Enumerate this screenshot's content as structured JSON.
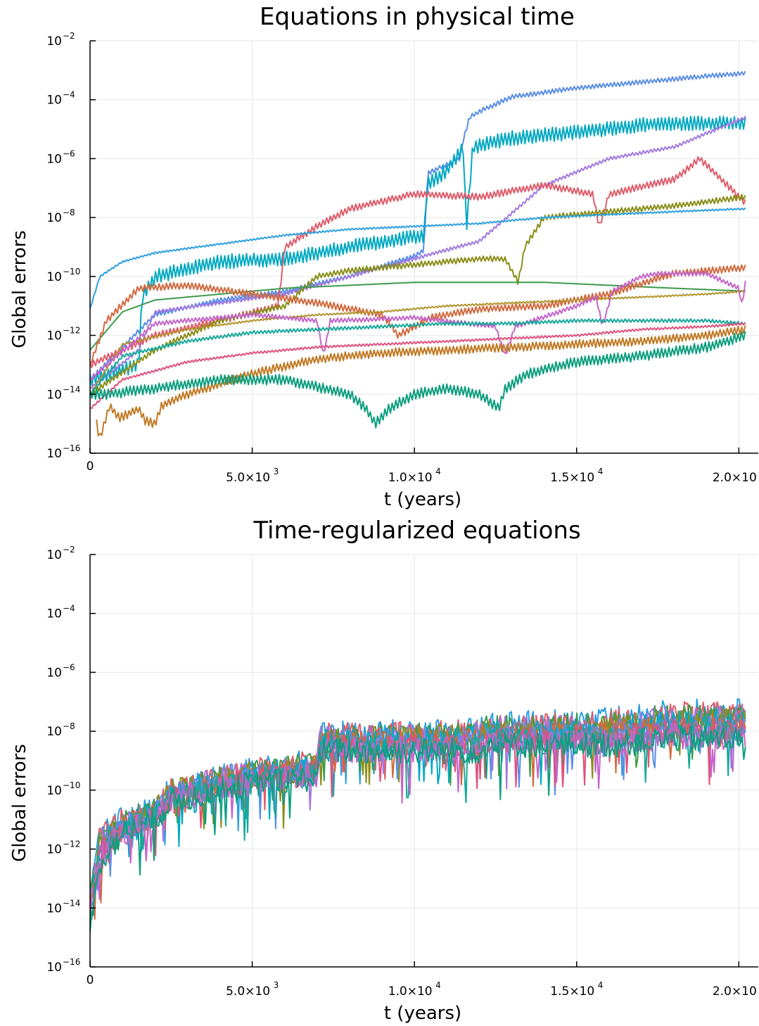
{
  "chart_data": [
    {
      "type": "line",
      "title": "Equations in physical time",
      "xlabel": "t (years)",
      "ylabel": "Global errors",
      "yscale": "log10",
      "xlim": [
        0,
        20600
      ],
      "ylim": [
        1e-16,
        0.01
      ],
      "x_ticks": [
        {
          "value": 0,
          "label": "0"
        },
        {
          "value": 5000,
          "mant": "5.0",
          "exp": "3"
        },
        {
          "value": 10000,
          "mant": "1.0",
          "exp": "4"
        },
        {
          "value": 15000,
          "mant": "1.5",
          "exp": "4"
        },
        {
          "value": 20000,
          "mant": "2.0",
          "exp": "4"
        }
      ],
      "y_ticks": [
        {
          "value": -2,
          "exp": "−2"
        },
        {
          "value": -4,
          "exp": "−4"
        },
        {
          "value": -6,
          "exp": "−6"
        },
        {
          "value": -8,
          "exp": "−8"
        },
        {
          "value": -10,
          "exp": "−10"
        },
        {
          "value": -12,
          "exp": "−12"
        },
        {
          "value": -14,
          "exp": "−14"
        },
        {
          "value": -16,
          "exp": "−16"
        }
      ],
      "grid": true,
      "legend": "none",
      "series": [
        {
          "color": "#5b8ee6",
          "x": [
            0,
            2000,
            4000,
            6000,
            8000,
            10000,
            10300,
            10400,
            11400,
            11500,
            11700,
            12000,
            13000,
            15000,
            17000,
            19000,
            20200
          ],
          "log10y": [
            -13.5,
            -11.3,
            -10.8,
            -10.5,
            -10.0,
            -9.3,
            -9.1,
            -6.5,
            -6.0,
            -5.4,
            -4.6,
            -4.4,
            -3.9,
            -3.6,
            -3.4,
            -3.2,
            -3.1
          ],
          "jitter": 0.08
        },
        {
          "color": "#00a9c2",
          "x": [
            0,
            1500,
            1600,
            2000,
            4000,
            6000,
            8000,
            10300,
            10400,
            11000,
            11500,
            11600,
            11800,
            13000,
            15000,
            17500,
            20200
          ],
          "log10y": [
            -13.5,
            -13.0,
            -10.7,
            -10.0,
            -9.5,
            -9.4,
            -9.0,
            -8.6,
            -6.9,
            -6.4,
            -5.6,
            -8.4,
            -5.6,
            -5.3,
            -5.1,
            -4.8,
            -4.8
          ],
          "jitter": 0.25
        },
        {
          "color": "#a279e0",
          "x": [
            0,
            1500,
            2000,
            4000,
            6000,
            8000,
            10000,
            12000,
            14000,
            16000,
            18000,
            20200
          ],
          "log10y": [
            -13.8,
            -12.5,
            -11.2,
            -10.9,
            -10.6,
            -10.0,
            -9.4,
            -8.8,
            -6.9,
            -6.0,
            -5.6,
            -4.6
          ],
          "jitter": 0.06
        },
        {
          "color": "#e05c6a",
          "x": [
            0,
            2000,
            4000,
            5800,
            6000,
            7000,
            8000,
            10000,
            12000,
            14000,
            15500,
            15700,
            16000,
            18000,
            18800,
            20200
          ],
          "log10y": [
            -13.0,
            -12.0,
            -11.5,
            -11.0,
            -9.0,
            -8.3,
            -7.7,
            -7.2,
            -7.3,
            -6.9,
            -7.2,
            -8.3,
            -7.2,
            -6.7,
            -6.0,
            -7.5
          ],
          "jitter": 0.12
        },
        {
          "color": "#8a8f1a",
          "x": [
            0,
            2000,
            4000,
            6000,
            7000,
            8000,
            10000,
            12000,
            12800,
            13200,
            13400,
            14000,
            16000,
            18000,
            20200
          ],
          "log10y": [
            -14.0,
            -12.5,
            -11.5,
            -11.0,
            -10.0,
            -9.8,
            -9.6,
            -9.4,
            -9.4,
            -10.2,
            -9.0,
            -8.0,
            -7.8,
            -7.6,
            -7.3
          ],
          "jitter": 0.1
        },
        {
          "color": "#2c9fe0",
          "x": [
            0,
            300,
            1000,
            2000,
            4000,
            6000,
            8000,
            10000,
            12000,
            14000,
            16000,
            18000,
            20200
          ],
          "log10y": [
            -11.1,
            -10.0,
            -9.5,
            -9.2,
            -8.9,
            -8.6,
            -8.4,
            -8.3,
            -8.2,
            -8.0,
            -7.9,
            -7.8,
            -7.7
          ],
          "jitter": 0.03
        },
        {
          "color": "#3d9a4a",
          "x": [
            0,
            1000,
            2000,
            4000,
            6000,
            8000,
            10000,
            12000,
            14000,
            16000,
            18000,
            20200
          ],
          "log10y": [
            -12.5,
            -11.2,
            -10.8,
            -10.6,
            -10.4,
            -10.3,
            -10.2,
            -10.2,
            -10.2,
            -10.3,
            -10.4,
            -10.5
          ],
          "jitter": 0.0
        },
        {
          "color": "#d26a3f",
          "x": [
            0,
            500,
            1500,
            3000,
            5000,
            7000,
            9000,
            9500,
            10500,
            12000,
            14000,
            16000,
            18000,
            20200
          ],
          "log10y": [
            -13.0,
            -11.5,
            -10.4,
            -10.3,
            -10.6,
            -10.9,
            -11.3,
            -12.0,
            -11.4,
            -11.1,
            -11.0,
            -10.6,
            -9.9,
            -9.7
          ],
          "jitter": 0.12
        },
        {
          "color": "#b0952d",
          "x": [
            0,
            1000,
            3000,
            5000,
            7000,
            9000,
            11000,
            13000,
            15000,
            17000,
            19000,
            20200
          ],
          "log10y": [
            -14.0,
            -12.3,
            -11.8,
            -11.5,
            -11.3,
            -11.2,
            -11.0,
            -10.9,
            -10.8,
            -10.7,
            -10.6,
            -10.5
          ],
          "jitter": 0.03
        },
        {
          "color": "#c465c9",
          "x": [
            0,
            2000,
            5000,
            7000,
            7200,
            7400,
            10000,
            12500,
            12800,
            13100,
            15000,
            15600,
            15800,
            16100,
            17000,
            17500,
            19000,
            20000,
            20100,
            20200
          ],
          "log10y": [
            -13.5,
            -11.6,
            -11.3,
            -11.5,
            -12.7,
            -11.5,
            -11.4,
            -11.7,
            -12.7,
            -11.7,
            -11.0,
            -10.7,
            -11.7,
            -10.5,
            -10.0,
            -9.9,
            -9.9,
            -10.4,
            -11.0,
            -10.2
          ],
          "jitter": 0.08
        },
        {
          "color": "#16a89a",
          "x": [
            0,
            1000,
            3000,
            5000,
            7000,
            9000,
            11000,
            13000,
            15000,
            17000,
            19000,
            20200
          ],
          "log10y": [
            -14.0,
            -12.7,
            -12.2,
            -11.9,
            -11.8,
            -11.7,
            -11.6,
            -11.6,
            -11.5,
            -11.5,
            -11.5,
            -11.6
          ],
          "jitter": 0.06
        },
        {
          "color": "#e0507c",
          "x": [
            0,
            1000,
            3000,
            5000,
            7000,
            9000,
            11000,
            13000,
            15000,
            17000,
            19000,
            20200
          ],
          "log10y": [
            -14.5,
            -13.5,
            -12.9,
            -12.6,
            -12.4,
            -12.3,
            -12.2,
            -12.1,
            -12.0,
            -11.8,
            -11.7,
            -11.6
          ],
          "jitter": 0.04
        },
        {
          "color": "#c27a25",
          "x": [
            200,
            300,
            600,
            900,
            1500,
            1700,
            2000,
            2200,
            3000,
            5000,
            7000,
            9000,
            11000,
            13000,
            15000,
            17000,
            19000,
            20200
          ],
          "log10y": [
            -15.0,
            -15.5,
            -14.4,
            -14.8,
            -14.5,
            -14.9,
            -15.0,
            -14.4,
            -14.0,
            -13.3,
            -12.8,
            -12.6,
            -12.5,
            -12.4,
            -12.3,
            -12.2,
            -12.0,
            -11.8
          ],
          "jitter": 0.15
        },
        {
          "color": "#0d9e7e",
          "x": [
            0,
            500,
            2000,
            4000,
            6000,
            8000,
            8500,
            8800,
            9200,
            10000,
            11000,
            12000,
            12600,
            12800,
            13500,
            15000,
            17000,
            19000,
            20200
          ],
          "log10y": [
            -14.0,
            -14.0,
            -13.8,
            -13.5,
            -13.5,
            -14.0,
            -14.5,
            -15.0,
            -14.5,
            -14.0,
            -13.8,
            -14.0,
            -14.5,
            -13.8,
            -13.3,
            -12.9,
            -12.7,
            -12.4,
            -12.0
          ],
          "jitter": 0.18
        }
      ]
    },
    {
      "type": "line",
      "title": "Time-regularized equations",
      "xlabel": "t (years)",
      "ylabel": "Global errors",
      "yscale": "log10",
      "xlim": [
        0,
        20600
      ],
      "ylim": [
        1e-16,
        0.01
      ],
      "x_ticks": [
        {
          "value": 0,
          "label": "0"
        },
        {
          "value": 5000,
          "mant": "5.0",
          "exp": "3"
        },
        {
          "value": 10000,
          "mant": "1.0",
          "exp": "4"
        },
        {
          "value": 15000,
          "mant": "1.5",
          "exp": "4"
        },
        {
          "value": 20000,
          "mant": "2.0",
          "exp": "4"
        }
      ],
      "y_ticks": [
        {
          "value": -2,
          "exp": "−2"
        },
        {
          "value": -4,
          "exp": "−4"
        },
        {
          "value": -6,
          "exp": "−6"
        },
        {
          "value": -8,
          "exp": "−8"
        },
        {
          "value": -10,
          "exp": "−10"
        },
        {
          "value": -12,
          "exp": "−12"
        },
        {
          "value": -14,
          "exp": "−14"
        },
        {
          "value": -16,
          "exp": "−16"
        }
      ],
      "grid": true,
      "legend": "none",
      "envelope": {
        "x": [
          0,
          300,
          1000,
          2000,
          2500,
          5000,
          7000,
          7100,
          10000,
          12000,
          12300,
          14000,
          16000,
          17000,
          18000,
          20200
        ],
        "upper_log10y": [
          -13.5,
          -11.5,
          -11.0,
          -10.6,
          -9.9,
          -9.3,
          -9.0,
          -8.1,
          -8.0,
          -7.9,
          -7.7,
          -7.7,
          -7.6,
          -7.4,
          -7.3,
          -7.3
        ],
        "lower_log10y": [
          -14.5,
          -12.5,
          -11.5,
          -11.0,
          -10.4,
          -9.8,
          -9.6,
          -8.7,
          -8.7,
          -8.7,
          -8.5,
          -8.5,
          -8.5,
          -8.4,
          -8.3,
          -8.3
        ],
        "colors": [
          "#2c9fe0",
          "#e05c6a",
          "#3d9a4a",
          "#a279e0",
          "#8a8f1a",
          "#00a9c2",
          "#d26a3f",
          "#5b8ee6",
          "#e0507c",
          "#16a89a",
          "#c465c9",
          "#0d9e7e"
        ]
      }
    }
  ]
}
